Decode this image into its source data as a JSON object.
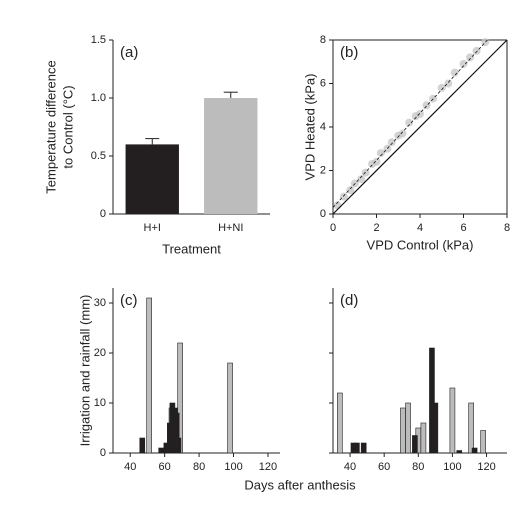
{
  "chart_data": [
    {
      "type": "bar",
      "panel_label": "(a)",
      "ylabel": [
        "Temperature difference",
        "to Control (°C)"
      ],
      "xlabel": "Treatment",
      "categories": [
        "H+I",
        "H+NI"
      ],
      "values": [
        0.6,
        1.0
      ],
      "errors": [
        0.05,
        0.05
      ],
      "colors": [
        "#231f20",
        "#bcbcbc"
      ],
      "ylim": [
        0,
        1.5
      ],
      "yticks": [
        0,
        0.5,
        {
          "value": 1,
          "label": "1.0"
        },
        1.5
      ]
    },
    {
      "type": "scatter",
      "panel_label": "(b)",
      "ylabel": "VPD Heated (kPa)",
      "xlabel": "VPD Control (kPa)",
      "box": true,
      "color": "#c8c8c8",
      "x": [
        0.2,
        0.5,
        0.8,
        1.0,
        1.3,
        1.5,
        1.8,
        2.0,
        2.2,
        2.5,
        2.7,
        3.0,
        3.2,
        3.5,
        3.8,
        4.0,
        4.3,
        4.6,
        5.0,
        5.3,
        5.6,
        6.0,
        6.3,
        6.6,
        7.0
      ],
      "values": [
        0.4,
        0.8,
        1.1,
        1.4,
        1.6,
        1.9,
        2.3,
        2.4,
        2.8,
        3.0,
        3.3,
        3.6,
        3.7,
        4.2,
        4.5,
        4.6,
        5.0,
        5.3,
        5.8,
        6.0,
        6.5,
        6.9,
        7.2,
        7.5,
        7.9
      ],
      "lines": [
        {
          "x": [
            0,
            8
          ],
          "values": [
            0,
            8
          ],
          "style": "solid"
        },
        {
          "x": [
            0,
            7.1
          ],
          "values": [
            0.3,
            8
          ],
          "style": "dashed"
        }
      ],
      "xlim": [
        0,
        8
      ],
      "ylim": [
        0,
        8
      ],
      "xticks": [
        0,
        2,
        4,
        6,
        8
      ],
      "yticks": [
        0,
        2,
        4,
        6,
        8
      ]
    },
    {
      "type": "timebar",
      "panel_label": "(c)",
      "ylabel": "Irrigation and rainfall (mm)",
      "xlabel": "Days after anthesis",
      "series": [
        {
          "color": "#bcbcbc",
          "x": [
            51,
            64,
            69,
            98
          ],
          "values": [
            31,
            9,
            22,
            18
          ]
        },
        {
          "color": "#231f20",
          "x": [
            47,
            58,
            61,
            63,
            64.5,
            66,
            67,
            68
          ],
          "values": [
            3,
            1,
            2,
            6,
            10,
            9,
            8,
            3
          ]
        }
      ],
      "xlim": [
        30,
        127
      ],
      "ylim": [
        0,
        33
      ],
      "xticks": [
        40,
        60,
        80,
        100,
        120
      ],
      "yticks": [
        0,
        10,
        20,
        30
      ]
    },
    {
      "type": "timebar",
      "panel_label": "(d)",
      "show_ytick_labels": false,
      "series": [
        {
          "color": "#bcbcbc",
          "x": [
            34,
            71,
            74,
            80,
            83,
            100,
            111,
            118
          ],
          "values": [
            12,
            9,
            10,
            5,
            6,
            13,
            10,
            4.5
          ]
        },
        {
          "color": "#231f20",
          "x": [
            42,
            44,
            48,
            78,
            88,
            90,
            104,
            113
          ],
          "values": [
            2,
            2,
            2,
            3.5,
            21,
            10,
            0.5,
            1
          ]
        }
      ],
      "xlim": [
        30,
        132
      ],
      "ylim": [
        0,
        33
      ],
      "xticks": [
        40,
        60,
        80,
        100,
        120
      ],
      "yticks": [
        0,
        10,
        20,
        30
      ]
    }
  ]
}
